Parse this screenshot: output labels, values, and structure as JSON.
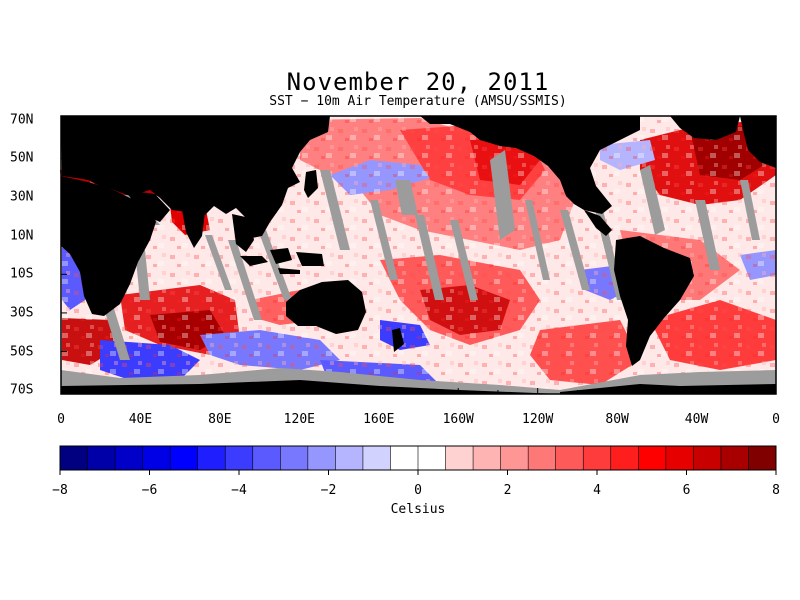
{
  "title": "November 20, 2011",
  "subtitle": "SST − 10m Air Temperature (AMSU/SSMIS)",
  "map": {
    "lat_labels": [
      "70N",
      "50N",
      "30N",
      "10N",
      "10S",
      "30S",
      "50S",
      "70S"
    ],
    "lat_values": [
      70,
      50,
      30,
      10,
      -10,
      -30,
      -50,
      -70
    ],
    "lon_labels": [
      "0",
      "40E",
      "80E",
      "120E",
      "160E",
      "160W",
      "120W",
      "80W",
      "40W",
      "0"
    ],
    "lon_values": [
      0,
      40,
      80,
      120,
      160,
      200,
      240,
      280,
      320,
      360
    ],
    "lon_range": [
      0,
      360
    ],
    "lat_range": [
      -72,
      72
    ],
    "colors": {
      "land": "#000000",
      "no_data": "#9c9c9c",
      "ocean_background": "#ffe6e6"
    }
  },
  "colorbar": {
    "ticks": [
      "−8",
      "−6",
      "−4",
      "−2",
      "0",
      "2",
      "4",
      "6",
      "8"
    ],
    "tick_values": [
      -8,
      -6,
      -4,
      -2,
      0,
      2,
      4,
      6,
      8
    ],
    "range": [
      -8,
      8
    ],
    "unit_label": "Celsius",
    "colors": [
      "#000080",
      "#0000a8",
      "#0000c8",
      "#0000e6",
      "#0000ff",
      "#1e1eff",
      "#3c3cff",
      "#5a5aff",
      "#7878ff",
      "#9696ff",
      "#b4b4ff",
      "#d2d2ff",
      "#ffffff",
      "#ffffff",
      "#ffd2d2",
      "#ffb4b4",
      "#ff9696",
      "#ff7878",
      "#ff5a5a",
      "#ff3c3c",
      "#ff1e1e",
      "#ff0000",
      "#e60000",
      "#c80000",
      "#a80000",
      "#800000"
    ]
  }
}
